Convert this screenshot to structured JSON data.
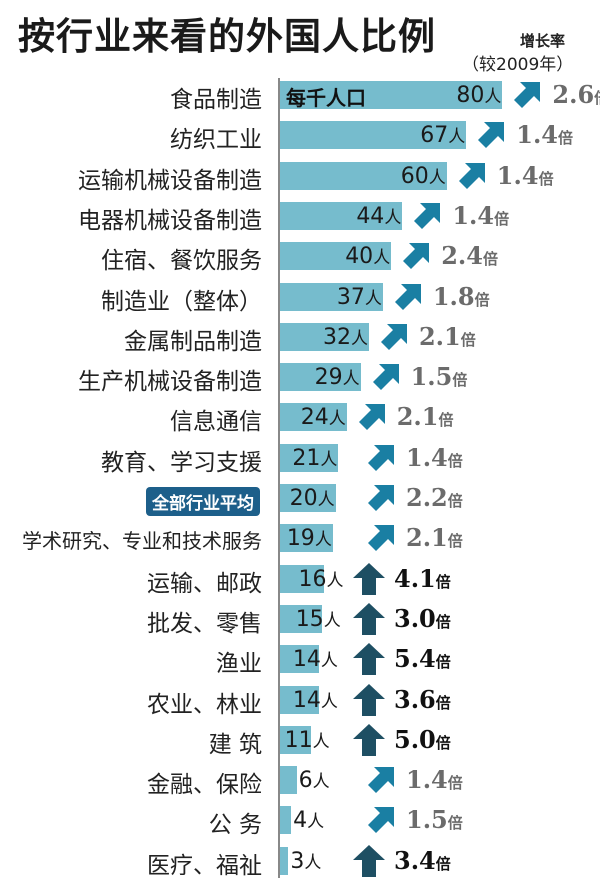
{
  "title": "按行业来看的外国人比例",
  "growth_header": "增长率",
  "growth_subheader": "（较2009年）",
  "unit_tag": "每千人口",
  "unit": "人",
  "times_unit": "倍",
  "colors": {
    "bar": "#76bccd",
    "arrow_diagonal": "#1a7fa3",
    "arrow_up": "#1e4f63",
    "highlight_label_bg": "#1d5f8a",
    "growth_moderate": "#6b6b6b",
    "growth_high": "#111111"
  },
  "rows": [
    {
      "label": "食品制造",
      "value": "80",
      "growth": "2.6",
      "arrow": "diagonal"
    },
    {
      "label": "纺织工业",
      "value": "67",
      "growth": "1.4",
      "arrow": "diagonal"
    },
    {
      "label": "运输机械设备制造",
      "value": "60",
      "growth": "1.4",
      "arrow": "diagonal"
    },
    {
      "label": "电器机械设备制造",
      "value": "44",
      "growth": "1.4",
      "arrow": "diagonal"
    },
    {
      "label": "住宿、餐饮服务",
      "value": "40",
      "growth": "2.4",
      "arrow": "diagonal"
    },
    {
      "label": "制造业（整体）",
      "value": "37",
      "growth": "1.8",
      "arrow": "diagonal"
    },
    {
      "label": "金属制品制造",
      "value": "32",
      "growth": "2.1",
      "arrow": "diagonal"
    },
    {
      "label": "生产机械设备制造",
      "value": "29",
      "growth": "1.5",
      "arrow": "diagonal"
    },
    {
      "label": "信息通信",
      "value": "24",
      "growth": "2.1",
      "arrow": "diagonal"
    },
    {
      "label": "教育、学习支援",
      "value": "21",
      "growth": "1.4",
      "arrow": "diagonal"
    },
    {
      "label": "全部行业平均",
      "value": "20",
      "growth": "2.2",
      "arrow": "diagonal",
      "highlight": true
    },
    {
      "label": "学术研究、专业和技术服务",
      "value": "19",
      "growth": "2.1",
      "arrow": "diagonal"
    },
    {
      "label": "运输、邮政",
      "value": "16",
      "growth": "4.1",
      "arrow": "up"
    },
    {
      "label": "批发、零售",
      "value": "15",
      "growth": "3.0",
      "arrow": "up"
    },
    {
      "label": "渔业",
      "value": "14",
      "growth": "5.4",
      "arrow": "up"
    },
    {
      "label": "农业、林业",
      "value": "14",
      "growth": "3.6",
      "arrow": "up"
    },
    {
      "label": "建 筑",
      "value": "11",
      "growth": "5.0",
      "arrow": "up"
    },
    {
      "label": "金融、保险",
      "value": "6",
      "growth": "1.4",
      "arrow": "diagonal"
    },
    {
      "label": "公 务",
      "value": "4",
      "growth": "1.5",
      "arrow": "diagonal"
    },
    {
      "label": "医疗、福祉",
      "value": "3",
      "growth": "3.4",
      "arrow": "up"
    }
  ],
  "chart_data": {
    "type": "bar",
    "orientation": "horizontal",
    "title": "按行业来看的外国人比例",
    "xlabel": "每千人口（人）",
    "ylabel": "",
    "categories": [
      "食品制造",
      "纺织工业",
      "运输机械设备制造",
      "电器机械设备制造",
      "住宿、餐饮服务",
      "制造业（整体）",
      "金属制品制造",
      "生产机械设备制造",
      "信息通信",
      "教育、学习支援",
      "全部行业平均",
      "学术研究、专业和技术服务",
      "运输、邮政",
      "批发、零售",
      "渔业",
      "农业、林业",
      "建筑",
      "金融、保险",
      "公务",
      "医疗、福祉"
    ],
    "series": [
      {
        "name": "外国人每千人口（人）",
        "values": [
          80,
          67,
          60,
          44,
          40,
          37,
          32,
          29,
          24,
          21,
          20,
          19,
          16,
          15,
          14,
          14,
          11,
          6,
          4,
          3
        ]
      },
      {
        "name": "增长率（较2009年，倍）",
        "values": [
          2.6,
          1.4,
          1.4,
          1.4,
          2.4,
          1.8,
          2.1,
          1.5,
          2.1,
          1.4,
          2.2,
          2.1,
          4.1,
          3.0,
          5.4,
          3.6,
          5.0,
          1.4,
          1.5,
          3.4
        ]
      }
    ],
    "annotations": [
      "增长率（较2009年）",
      "全部行业平均 highlighted",
      "up arrows mark growth ≥ 3.0倍 (plus 医疗、福祉 3.4倍)"
    ],
    "grid": false,
    "legend": "none",
    "xlim": [
      0,
      80
    ]
  }
}
